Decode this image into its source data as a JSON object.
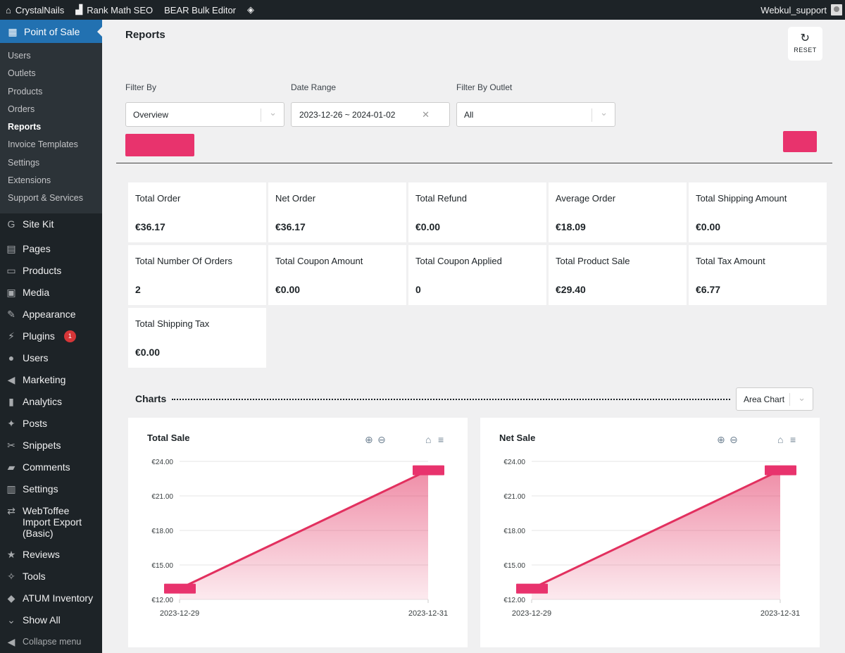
{
  "adminbar": {
    "site": "CrystalNails",
    "items": [
      "Rank Math SEO",
      "BEAR Bulk Editor"
    ],
    "user": "Webkul_support"
  },
  "sidebar": {
    "current": "Point of Sale",
    "submenu": [
      "Users",
      "Outlets",
      "Products",
      "Orders",
      "Reports",
      "Invoice Templates",
      "Settings",
      "Extensions",
      "Support & Services"
    ],
    "active_sub": "Reports",
    "menu": [
      {
        "label": "Site Kit",
        "icon": "google-icon"
      },
      {
        "label": "Pages",
        "icon": "pages-icon"
      },
      {
        "label": "Products",
        "icon": "archive-icon"
      },
      {
        "label": "Media",
        "icon": "media-icon"
      },
      {
        "label": "Appearance",
        "icon": "brush-icon"
      },
      {
        "label": "Plugins",
        "icon": "plugin-icon",
        "badge": "1"
      },
      {
        "label": "Users",
        "icon": "user-icon"
      },
      {
        "label": "Marketing",
        "icon": "megaphone-icon"
      },
      {
        "label": "Analytics",
        "icon": "bar-chart-icon"
      },
      {
        "label": "Posts",
        "icon": "pin-icon"
      },
      {
        "label": "Snippets",
        "icon": "scissors-icon"
      },
      {
        "label": "Comments",
        "icon": "comment-icon"
      },
      {
        "label": "Settings",
        "icon": "sliders-icon"
      },
      {
        "label": "WebToffee Import Export (Basic)",
        "icon": "import-export-icon"
      },
      {
        "label": "Reviews",
        "icon": "star-icon"
      },
      {
        "label": "Tools",
        "icon": "wrench-icon"
      },
      {
        "label": "ATUM Inventory",
        "icon": "atum-icon"
      },
      {
        "label": "Show All",
        "icon": "chevron-down-icon"
      }
    ],
    "collapse": "Collapse menu"
  },
  "page": {
    "title": "Reports",
    "reset_label": "RESET"
  },
  "filters": {
    "filter_by_label": "Filter By",
    "filter_by_value": "Overview",
    "date_range_label": "Date Range",
    "date_range_value": "2023-12-26 ~ 2024-01-02",
    "outlet_label": "Filter By Outlet",
    "outlet_value": "All",
    "colors": {
      "accent": "#e8336d",
      "wp_blue": "#2271b1"
    }
  },
  "cards": [
    {
      "label": "Total Order",
      "value": "€36.17"
    },
    {
      "label": "Net Order",
      "value": "€36.17"
    },
    {
      "label": "Total Refund",
      "value": "€0.00"
    },
    {
      "label": "Average Order",
      "value": "€18.09"
    },
    {
      "label": "Total Shipping Amount",
      "value": "€0.00"
    },
    {
      "label": "Total Number Of Orders",
      "value": "2"
    },
    {
      "label": "Total Coupon Amount",
      "value": "€0.00"
    },
    {
      "label": "Total Coupon Applied",
      "value": "0"
    },
    {
      "label": "Total Product Sale",
      "value": "€29.40"
    },
    {
      "label": "Total Tax Amount",
      "value": "€6.77"
    },
    {
      "label": "Total Shipping Tax",
      "value": "€0.00"
    }
  ],
  "charts_section": {
    "heading": "Charts",
    "chart_type": "Area Chart"
  },
  "chart_data": [
    {
      "type": "area",
      "title": "Total Sale",
      "x": [
        "2023-12-29",
        "2023-12-31"
      ],
      "values": [
        12.94,
        23.23
      ],
      "ylim": [
        12,
        24
      ],
      "yticks": [
        "€24.00",
        "€21.00",
        "€18.00",
        "€15.00",
        "€12.00"
      ],
      "grid": true,
      "color": "#e2305f"
    },
    {
      "type": "area",
      "title": "Net Sale",
      "x": [
        "2023-12-29",
        "2023-12-31"
      ],
      "values": [
        12.94,
        23.23
      ],
      "ylim": [
        12,
        24
      ],
      "yticks": [
        "€24.00",
        "€21.00",
        "€18.00",
        "€15.00",
        "€12.00"
      ],
      "grid": true,
      "color": "#e2305f"
    }
  ]
}
